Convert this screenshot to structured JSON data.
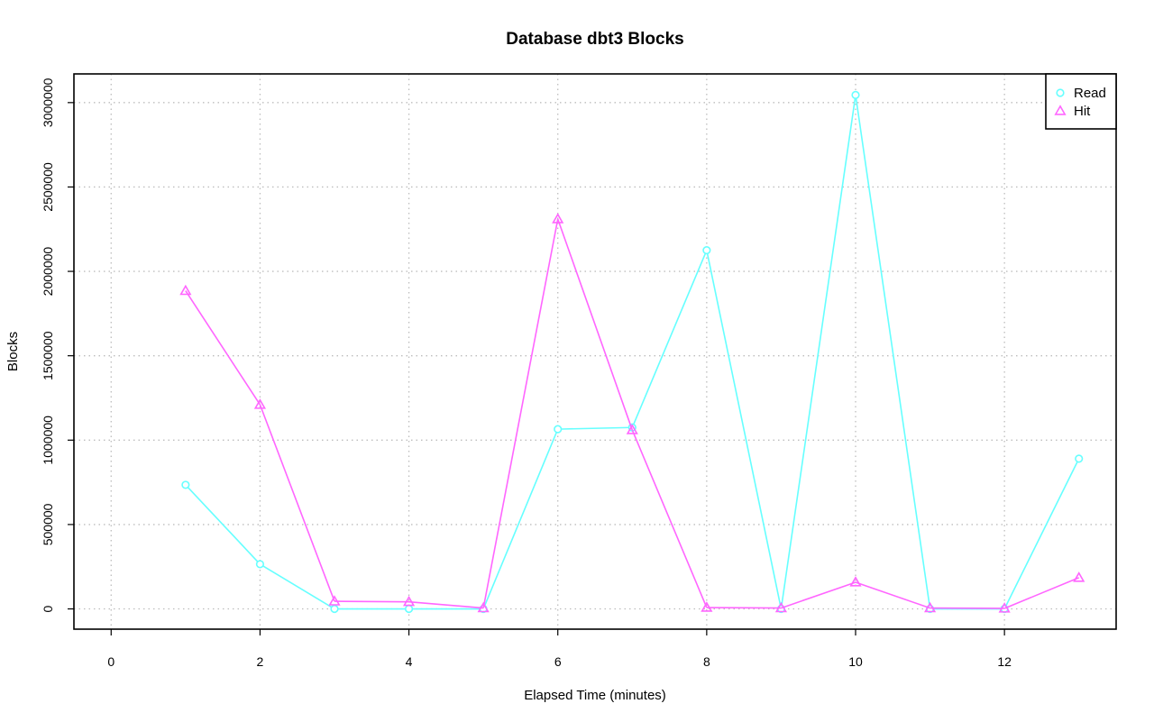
{
  "chart_data": {
    "type": "line",
    "title": "Database dbt3 Blocks",
    "xlabel": "Elapsed Time (minutes)",
    "ylabel": "Blocks",
    "xlim": [
      -0.5,
      13.5
    ],
    "ylim": [
      -120000,
      3170000
    ],
    "x_ticks": [
      0,
      2,
      4,
      6,
      8,
      10,
      12
    ],
    "y_ticks": [
      0,
      500000,
      1000000,
      1500000,
      2000000,
      2500000,
      3000000
    ],
    "grid": true,
    "legend_position": "top-right",
    "series": [
      {
        "name": "Read",
        "color": "#66ffff",
        "marker": "circle",
        "x": [
          1,
          2,
          3,
          4,
          5,
          6,
          7,
          8,
          9,
          10,
          11,
          12,
          13
        ],
        "values": [
          735000,
          265000,
          0,
          0,
          0,
          1065000,
          1075000,
          2125000,
          0,
          3045000,
          0,
          0,
          890000
        ]
      },
      {
        "name": "Hit",
        "color": "#ff66ff",
        "marker": "triangle",
        "x": [
          1,
          2,
          3,
          4,
          5,
          6,
          7,
          8,
          9,
          10,
          11,
          12,
          13
        ],
        "values": [
          1885000,
          1210000,
          45000,
          42000,
          5000,
          2310000,
          1060000,
          8000,
          5000,
          158000,
          5000,
          3000,
          185000
        ]
      }
    ]
  }
}
